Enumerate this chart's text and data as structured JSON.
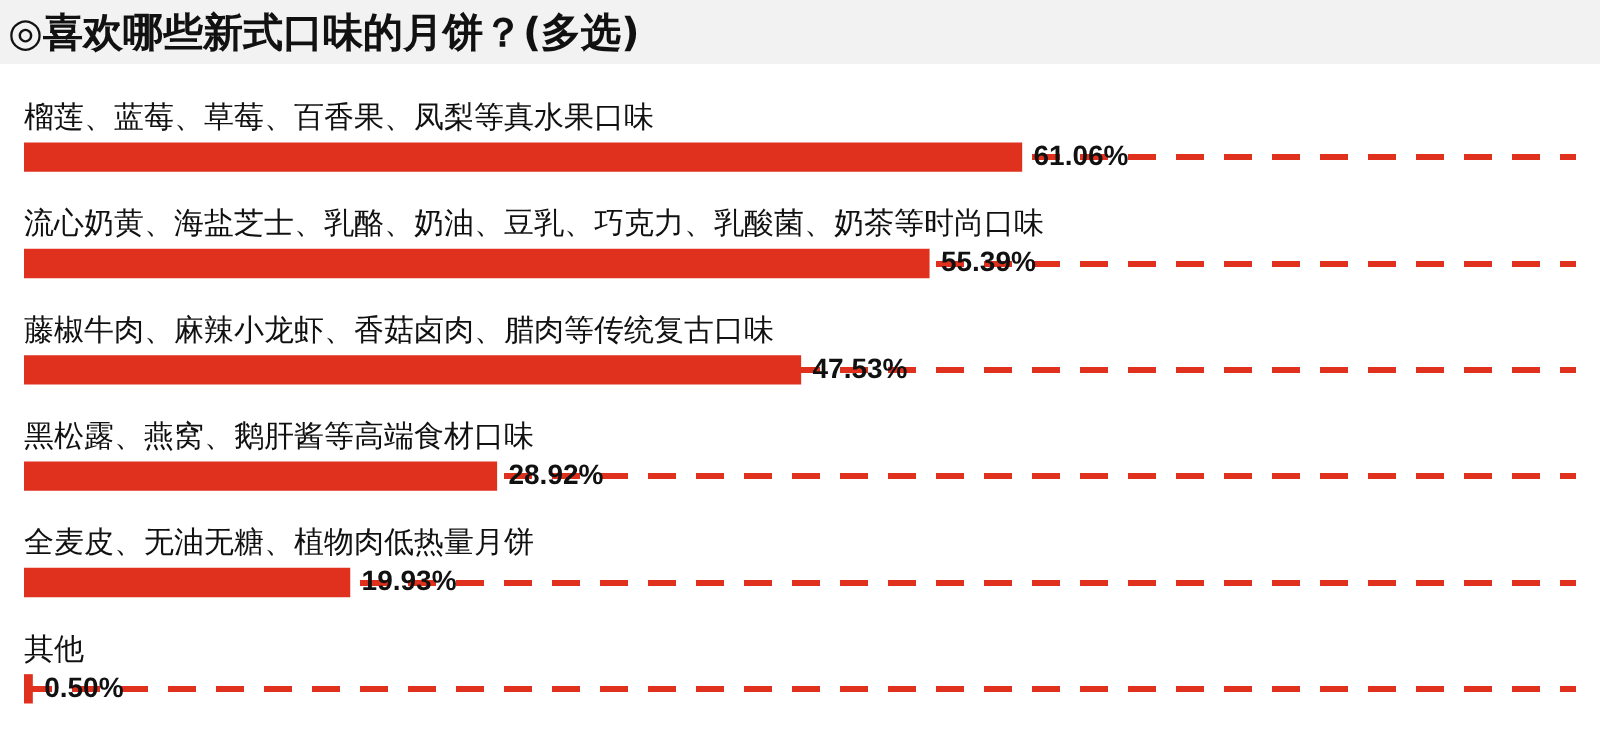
{
  "chart_data": {
    "type": "bar",
    "orientation": "horizontal",
    "title": "◎喜欢哪些新式口味的月饼？(多选)",
    "categories": [
      "榴莲、蓝莓、草莓、百香果、凤梨等真水果口味",
      "流心奶黄、海盐芝士、乳酪、奶油、豆乳、巧克力、乳酸菌、奶茶等时尚口味",
      "藤椒牛肉、麻辣小龙虾、香菇卤肉、腊肉等传统复古口味",
      "黑松露、燕窝、鹅肝酱等高端食材口味",
      "全麦皮、无油无糖、植物肉低热量月饼",
      "其他"
    ],
    "values": [
      61.06,
      55.39,
      47.53,
      28.92,
      19.93,
      0.5
    ],
    "value_labels": [
      "61.06%",
      "55.39%",
      "47.53%",
      "28.92%",
      "19.93%",
      "0.50%"
    ],
    "color": "#e0301e",
    "grid": "y",
    "line_style": "dashed",
    "xlim": [
      0,
      95
    ],
    "tick_labels": "y",
    "legend": false
  }
}
